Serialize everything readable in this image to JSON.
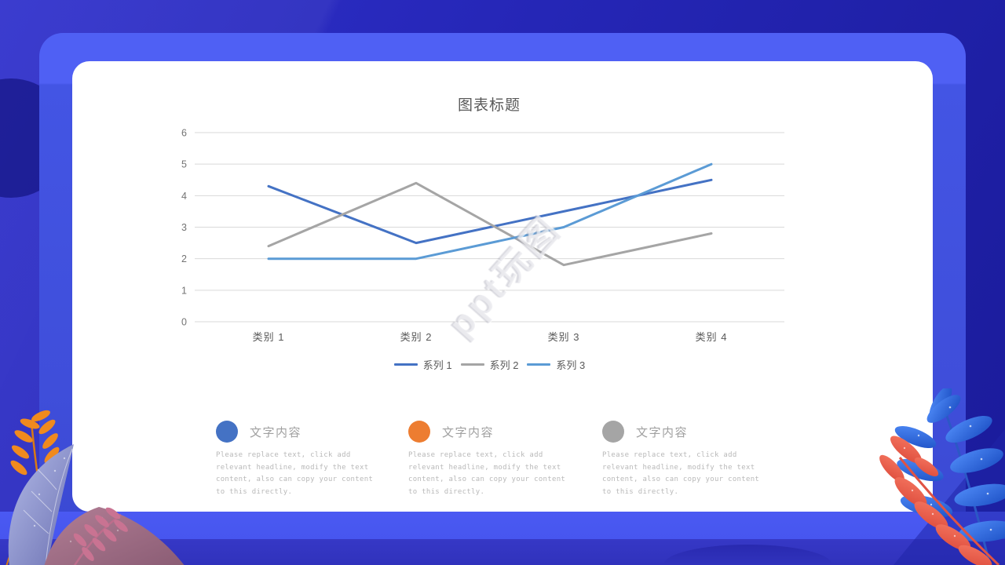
{
  "slide": {
    "watermark": "ppt玩图"
  },
  "palette": {
    "bg-deep": "#1a1b9a",
    "bg-light": "#2f30cc",
    "bezel-top": "#4f60f4",
    "bezel": "#3f4eda",
    "band-top": "#4756ef",
    "band-bottom": "#3032bc",
    "card": "#ffffff"
  },
  "chart_data": {
    "type": "line",
    "title": "图表标题",
    "categories": [
      "类别 1",
      "类别 2",
      "类别 3",
      "类别 4"
    ],
    "series": [
      {
        "name": "系列 1",
        "color": "#4472C4",
        "values": [
          4.3,
          2.5,
          3.5,
          4.5
        ]
      },
      {
        "name": "系列 2",
        "color": "#A5A5A5",
        "values": [
          2.4,
          4.4,
          1.8,
          2.8
        ]
      },
      {
        "name": "系列 3",
        "color": "#5B9BD5",
        "values": [
          2.0,
          2.0,
          3.0,
          5.0
        ]
      }
    ],
    "ylim": [
      0,
      6
    ],
    "ytick_step": 1,
    "grid": true,
    "legend_position": "bottom",
    "title_color": "#595959",
    "axis_text_color": "#737373",
    "category_text_color": "#595959",
    "gridline_color": "#d9d9d9"
  },
  "content_blocks": [
    {
      "bullet_color": "#4472C4",
      "heading": "文字内容",
      "body": "Please replace text, click add relevant headline, modify the text content, also can copy your content to this directly."
    },
    {
      "bullet_color": "#ED7D31",
      "heading": "文字内容",
      "body": "Please replace text, click add relevant headline, modify the text content, also can copy your content to this directly."
    },
    {
      "bullet_color": "#A5A5A5",
      "heading": "文字内容",
      "body": "Please replace text, click add relevant headline, modify the text content, also can copy your content to this directly."
    }
  ]
}
